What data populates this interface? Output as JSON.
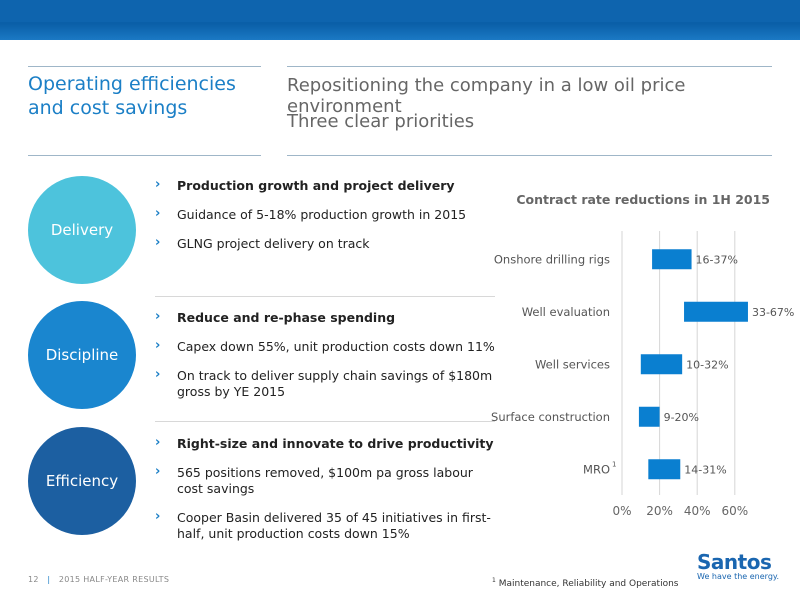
{
  "header": {
    "left_title": "Operating efficiencies and cost savings",
    "right_line1": "Repositioning the company in a low oil price environment",
    "right_line2": "Three clear priorities"
  },
  "colors": {
    "delivery": "#4dc3dc",
    "discipline": "#1a86cf",
    "efficiency": "#1c5fa1",
    "accent": "#1b7fc6",
    "bar": "#0a7fd0"
  },
  "sections": [
    {
      "circle_label": "Delivery",
      "bullets": [
        "Production growth and project delivery",
        "Guidance of 5-18% production growth in 2015",
        "GLNG project delivery on track"
      ]
    },
    {
      "circle_label": "Discipline",
      "bullets": [
        "Reduce and re-phase spending",
        "Capex down 55%, unit production costs down 11%",
        "On track to deliver supply chain savings of $180m gross by YE 2015"
      ]
    },
    {
      "circle_label": "Efficiency",
      "bullets": [
        "Right-size and innovate to drive productivity",
        "565 positions removed, $100m pa gross labour cost savings",
        "Cooper Basin delivered 35 of 45 initiatives in first-half, unit production costs down 15%"
      ]
    }
  ],
  "chart_data": {
    "type": "bar",
    "orientation": "horizontal-range",
    "title": "Contract rate reductions in 1H 2015",
    "categories": [
      "Onshore drilling rigs",
      "Well evaluation",
      "Well services",
      "Surface construction",
      "MRO"
    ],
    "category_superscripts": [
      "",
      "",
      "",
      "",
      "1"
    ],
    "ranges": [
      [
        16,
        37
      ],
      [
        33,
        67
      ],
      [
        10,
        32
      ],
      [
        9,
        20
      ],
      [
        14,
        31
      ]
    ],
    "labels": [
      "16-37%",
      "33-67%",
      "10-32%",
      "9-20%",
      "14-31%"
    ],
    "xticks": [
      "0%",
      "20%",
      "40%",
      "60%"
    ],
    "xlim": [
      0,
      70
    ],
    "grid": true
  },
  "footer": {
    "page": "12",
    "separator": "|",
    "doc": "2015 HALF-YEAR RESULTS",
    "footnote_mark": "1",
    "footnote": "Maintenance, Reliability and Operations"
  },
  "logo": {
    "name": "Santos",
    "tagline": "We have the energy."
  }
}
